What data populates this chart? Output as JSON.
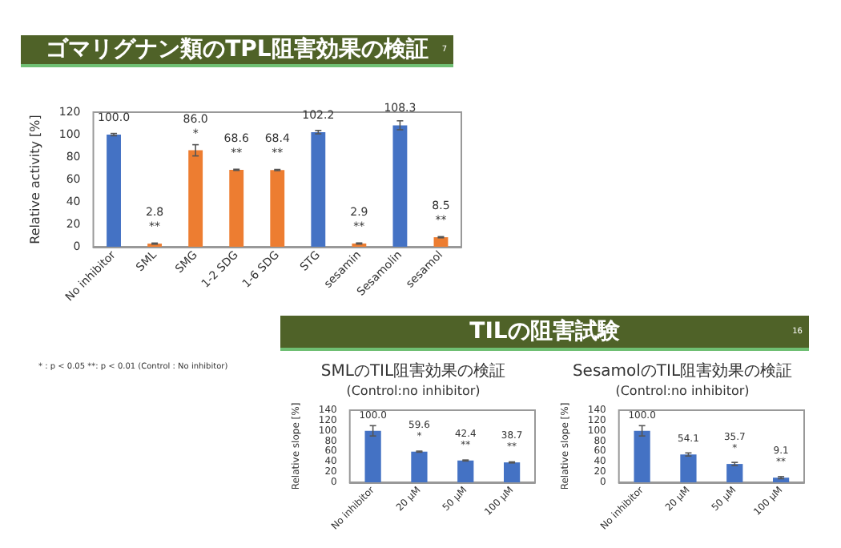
{
  "chart_data": [
    {
      "type": "bar",
      "title": "ゴマリグナン類のTPL阻害効果の検証",
      "ylabel": "Relative activity [%]",
      "categories": [
        "No inhibitor",
        "SML",
        "SMG",
        "1-2 SDG",
        "1-6 SDG",
        "STG",
        "sesamin",
        "Sesamolin",
        "sesamol"
      ],
      "values": [
        100.0,
        2.8,
        86.0,
        68.6,
        68.4,
        102.2,
        2.9,
        108.3,
        8.5
      ],
      "colors": [
        "#4472c4",
        "#ed7d31",
        "#ed7d31",
        "#ed7d31",
        "#ed7d31",
        "#4472c4",
        "#ed7d31",
        "#4472c4",
        "#ed7d31"
      ],
      "errors": [
        1,
        0.5,
        5,
        0.5,
        0.5,
        1.5,
        0.5,
        4,
        0.5
      ],
      "value_labels": [
        "100.0",
        "2.8\n**",
        "86.0\n*",
        "68.6\n**",
        "68.4\n**",
        "102.2",
        "2.9\n**",
        "108.3",
        "8.5\n**"
      ],
      "ylim": [
        0,
        120
      ],
      "yticks": [
        0,
        20,
        40,
        60,
        80,
        100,
        120
      ],
      "grid": false,
      "annotations": [
        "7",
        "* : p < 0.05  **: p < 0.01 (Control : No inhibitor)"
      ]
    },
    {
      "type": "bar",
      "title": "SMLのTIL阻害効果の検証",
      "subtitle": "(Control:no inhibitor)",
      "ylabel": "Relative slope [%]",
      "categories": [
        "No inhibitor",
        "20 μM",
        "50 μM",
        "100 μM"
      ],
      "values": [
        100.0,
        59.6,
        42.4,
        38.7
      ],
      "colors": [
        "#4472c4",
        "#4472c4",
        "#4472c4",
        "#4472c4"
      ],
      "errors": [
        10,
        1,
        1,
        1
      ],
      "value_labels": [
        "100.0",
        "59.6\n*",
        "42.4\n**",
        "38.7\n**"
      ],
      "ylim": [
        0,
        140
      ],
      "yticks": [
        0,
        20,
        40,
        60,
        80,
        100,
        120,
        140
      ],
      "grid": false,
      "annotations": [
        "TILの阻害試験",
        "16"
      ]
    },
    {
      "type": "bar",
      "title": "SesamolのTIL阻害効果の検証",
      "subtitle": "(Control:no inhibitor)",
      "ylabel": "Relative slope [%]",
      "categories": [
        "No inhibitor",
        "20 μM",
        "50 μM",
        "100 μM"
      ],
      "values": [
        100.0,
        54.1,
        35.7,
        9.1
      ],
      "colors": [
        "#4472c4",
        "#4472c4",
        "#4472c4",
        "#4472c4"
      ],
      "errors": [
        10,
        3,
        3,
        2
      ],
      "value_labels": [
        "100.0",
        "54.1",
        "35.7\n*",
        "9.1\n**"
      ],
      "ylim": [
        0,
        140
      ],
      "yticks": [
        0,
        20,
        40,
        60,
        80,
        100,
        120,
        140
      ],
      "grid": false
    }
  ]
}
